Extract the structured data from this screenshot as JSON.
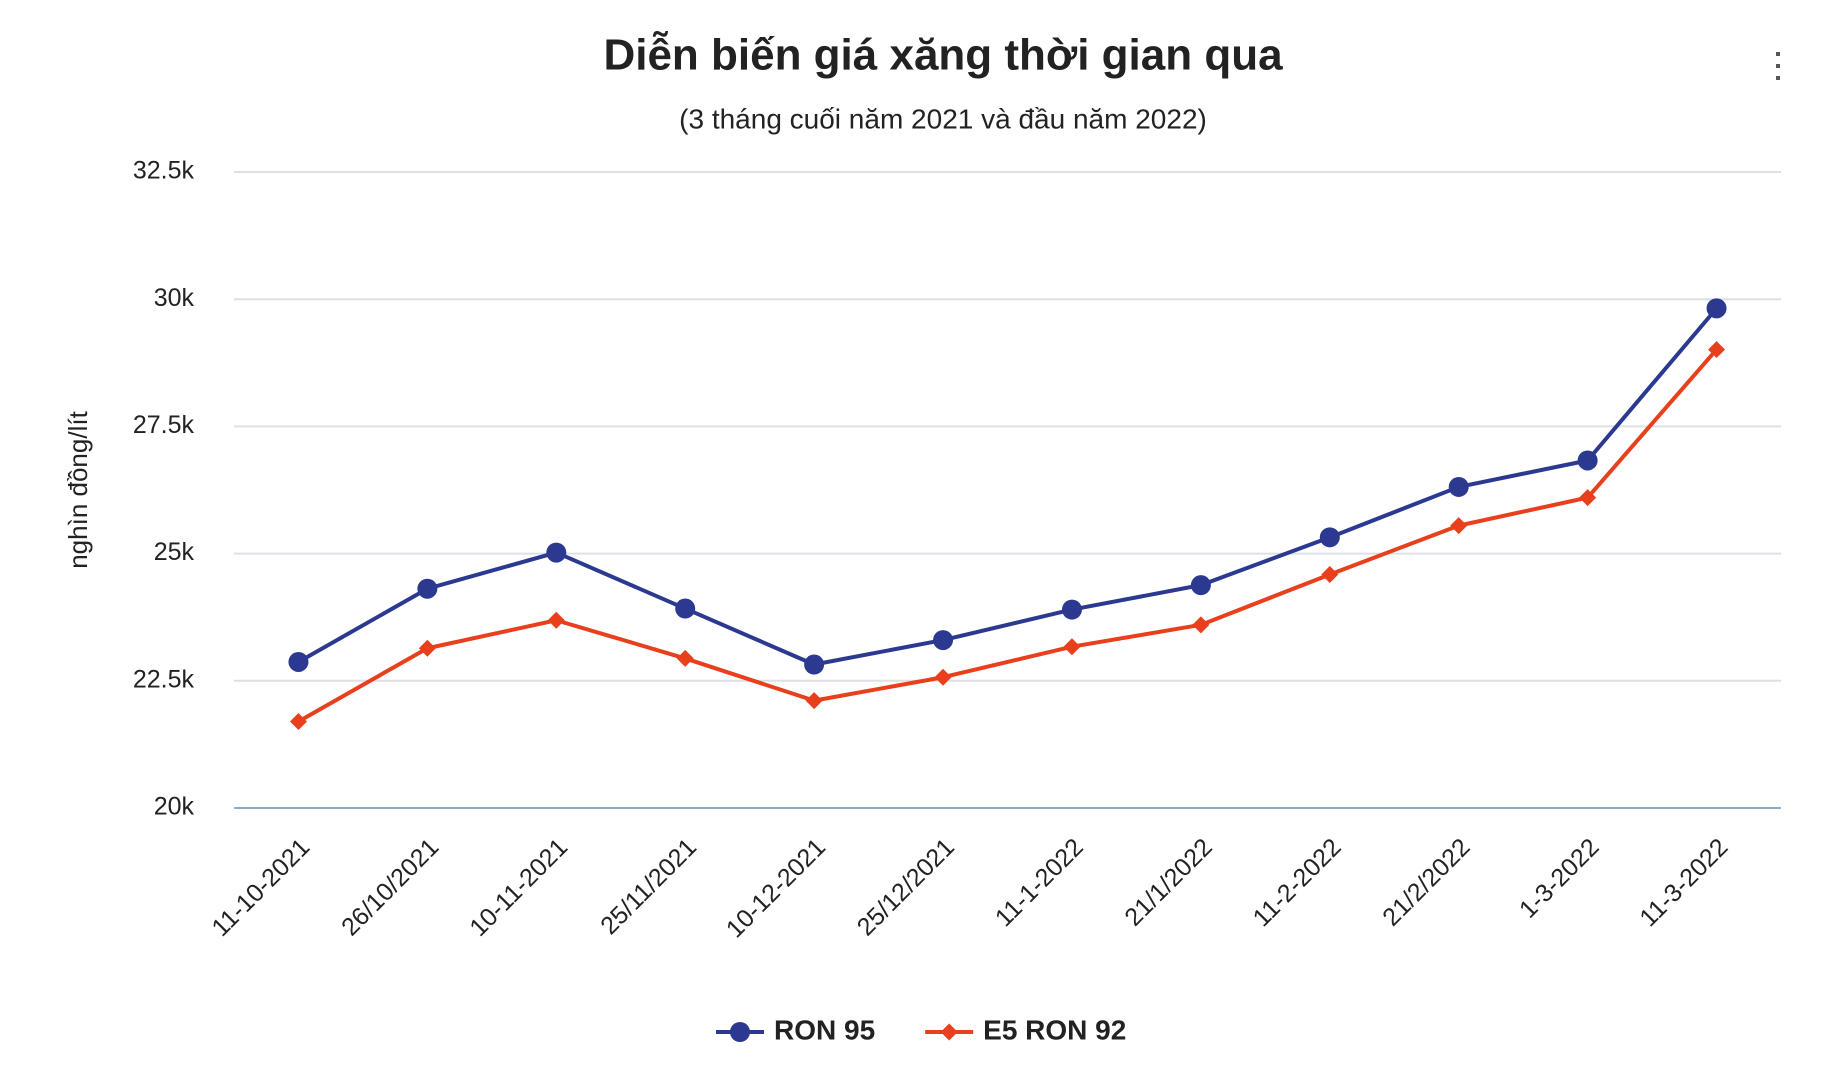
{
  "chart_data": {
    "type": "line",
    "title": "Diễn biến giá xăng thời gian qua",
    "subtitle": "(3 tháng cuối năm 2021 và đầu năm 2022)",
    "y_label": "nghìn đồng/lít",
    "categories": [
      "11-10-2021",
      "26/10/2021",
      "10-11-2021",
      "25/11/2021",
      "10-12-2021",
      "25/12/2021",
      "11-1-2022",
      "21/1/2022",
      "11-2-2022",
      "21/2/2022",
      "1-3-2022",
      "11-3-2022"
    ],
    "series": [
      {
        "name": "RON 95",
        "color": "#2b3990",
        "marker": "circle",
        "values": [
          22870,
          24310,
          25020,
          23920,
          22820,
          23300,
          23900,
          24380,
          25320,
          26310,
          26830,
          29820
        ]
      },
      {
        "name": "E5 RON 92",
        "color": "#e8401c",
        "marker": "diamond",
        "values": [
          21700,
          23140,
          23690,
          22940,
          22110,
          22570,
          23170,
          23600,
          24590,
          25550,
          26100,
          29010
        ]
      }
    ],
    "ylim": [
      20000,
      32500
    ],
    "yticks": [
      {
        "value": 20000,
        "label": "20k"
      },
      {
        "value": 22500,
        "label": "22.5k"
      },
      {
        "value": 25000,
        "label": "25k"
      },
      {
        "value": 27500,
        "label": "27.5k"
      },
      {
        "value": 30000,
        "label": "30k"
      },
      {
        "value": 32500,
        "label": "32.5k"
      }
    ],
    "grid": true,
    "legend": "bottom"
  }
}
